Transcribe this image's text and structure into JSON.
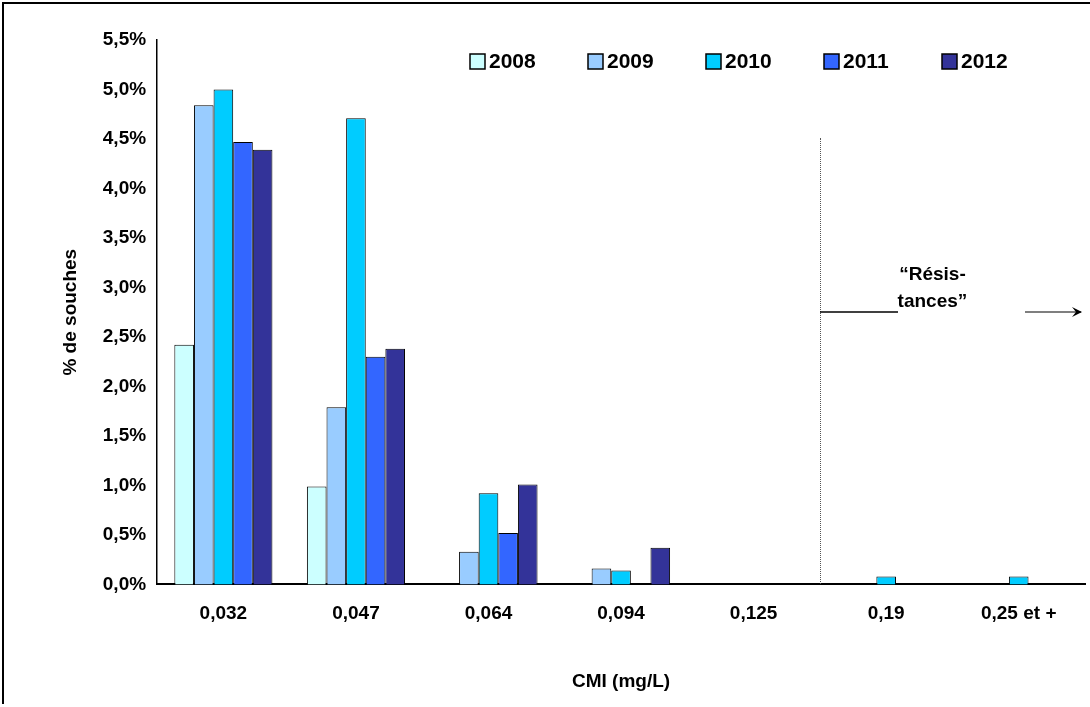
{
  "chart_data": {
    "type": "bar",
    "xlabel": "CMI (mg/L)",
    "ylabel": "% de souches",
    "categories": [
      "0,032",
      "0,047",
      "0,064",
      "0,094",
      "0,125",
      "0,19",
      "0,25 et +"
    ],
    "series": [
      {
        "name": "2008",
        "color": "#ccffff",
        "values": [
          2.42,
          0.99,
          0,
          0,
          0,
          0,
          0
        ]
      },
      {
        "name": "2009",
        "color": "#99ccff",
        "values": [
          4.84,
          1.79,
          0.33,
          0.16,
          0,
          0,
          0
        ]
      },
      {
        "name": "2010",
        "color": "#00ccff",
        "values": [
          5.0,
          4.71,
          0.92,
          0.14,
          0,
          0.08,
          0.08
        ]
      },
      {
        "name": "2011",
        "color": "#3366ff",
        "values": [
          4.47,
          2.3,
          0.52,
          0,
          0,
          0,
          0
        ]
      },
      {
        "name": "2012",
        "color": "#333399",
        "values": [
          4.39,
          2.38,
          1.01,
          0.37,
          0,
          0,
          0
        ]
      }
    ],
    "ylim": [
      0,
      5.5
    ],
    "yticks": [
      {
        "value": 0,
        "label": "0,0%"
      },
      {
        "value": 0.5,
        "label": "0,5%"
      },
      {
        "value": 1,
        "label": "1,0%"
      },
      {
        "value": 1.5,
        "label": "1,5%"
      },
      {
        "value": 2,
        "label": "2,0%"
      },
      {
        "value": 2.5,
        "label": "2,5%"
      },
      {
        "value": 3,
        "label": "3,0%"
      },
      {
        "value": 3.5,
        "label": "3,5%"
      },
      {
        "value": 4,
        "label": "4,0%"
      },
      {
        "value": 4.5,
        "label": "4,5%"
      },
      {
        "value": 5,
        "label": "5,0%"
      },
      {
        "value": 5.5,
        "label": "5,5%"
      }
    ],
    "annotations": [
      "“Résis-\ntances”"
    ],
    "grid": false,
    "legend": "top right"
  }
}
